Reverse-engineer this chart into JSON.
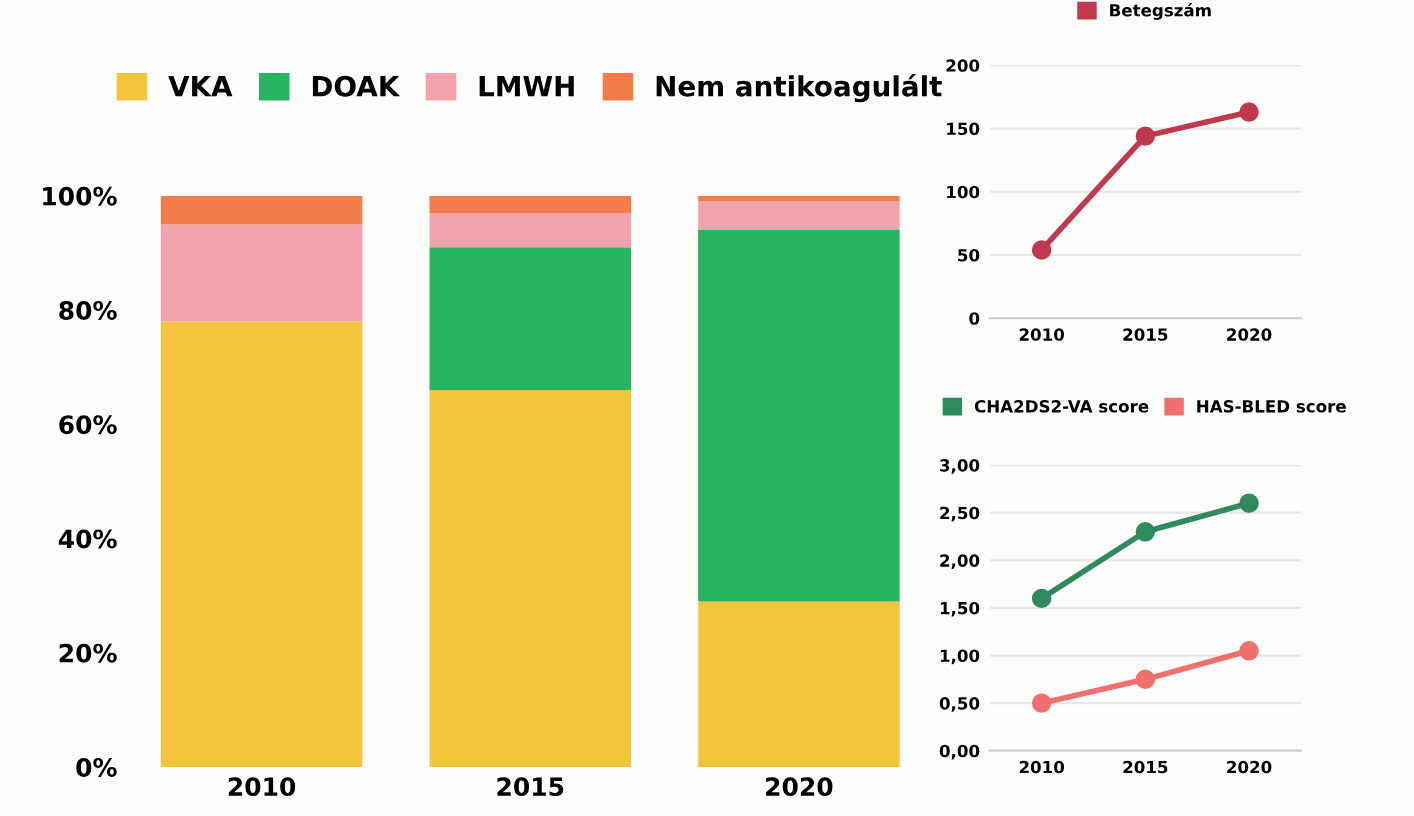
{
  "chart_data": [
    {
      "type": "bar",
      "stacked": true,
      "categories": [
        "2010",
        "2015",
        "2020"
      ],
      "ylim": [
        0,
        100
      ],
      "yticks": [
        {
          "value": 0,
          "label": "0%"
        },
        {
          "value": 20,
          "label": "20%"
        },
        {
          "value": 40,
          "label": "40%"
        },
        {
          "value": 60,
          "label": "60%"
        },
        {
          "value": 80,
          "label": "80%"
        },
        {
          "value": 100,
          "label": "100%"
        }
      ],
      "grid": false,
      "legend": "top",
      "series": [
        {
          "name": "VKA",
          "color": "#f2c53d",
          "values": [
            78,
            66,
            29
          ]
        },
        {
          "name": "DOAK",
          "color": "#27b35f",
          "values": [
            0,
            25,
            65
          ]
        },
        {
          "name": "LMWH",
          "color": "#f4a3ad",
          "values": [
            17,
            6,
            5
          ]
        },
        {
          "name": "Nem antikoagulált",
          "color": "#f27d4a",
          "values": [
            5,
            3,
            1
          ]
        }
      ]
    },
    {
      "type": "line",
      "categories": [
        "2010",
        "2015",
        "2020"
      ],
      "ylim": [
        0,
        200
      ],
      "yticks": [
        0,
        50,
        100,
        150,
        200
      ],
      "grid": "y",
      "legend": "top",
      "marker": "circle",
      "line_style": "solid",
      "series": [
        {
          "name": "Betegszám",
          "color": "#c0394f",
          "values": [
            54,
            144,
            163
          ]
        }
      ]
    },
    {
      "type": "line",
      "categories": [
        "2010",
        "2015",
        "2020"
      ],
      "ylim": [
        0,
        3
      ],
      "yticks": [
        {
          "value": 0,
          "label": "0,00"
        },
        {
          "value": 0.5,
          "label": "0,50"
        },
        {
          "value": 1,
          "label": "1,00"
        },
        {
          "value": 1.5,
          "label": "1,50"
        },
        {
          "value": 2,
          "label": "2,00"
        },
        {
          "value": 2.5,
          "label": "2,50"
        },
        {
          "value": 3,
          "label": "3,00"
        }
      ],
      "grid": "y",
      "legend": "top",
      "marker": "circle",
      "line_style": "solid",
      "series": [
        {
          "name": "CHA2DS2-VA score",
          "color": "#2e8b5e",
          "values": [
            1.6,
            2.3,
            2.6
          ]
        },
        {
          "name": "HAS-BLED score",
          "color": "#f07070",
          "values": [
            0.5,
            0.75,
            1.05
          ]
        }
      ]
    }
  ]
}
